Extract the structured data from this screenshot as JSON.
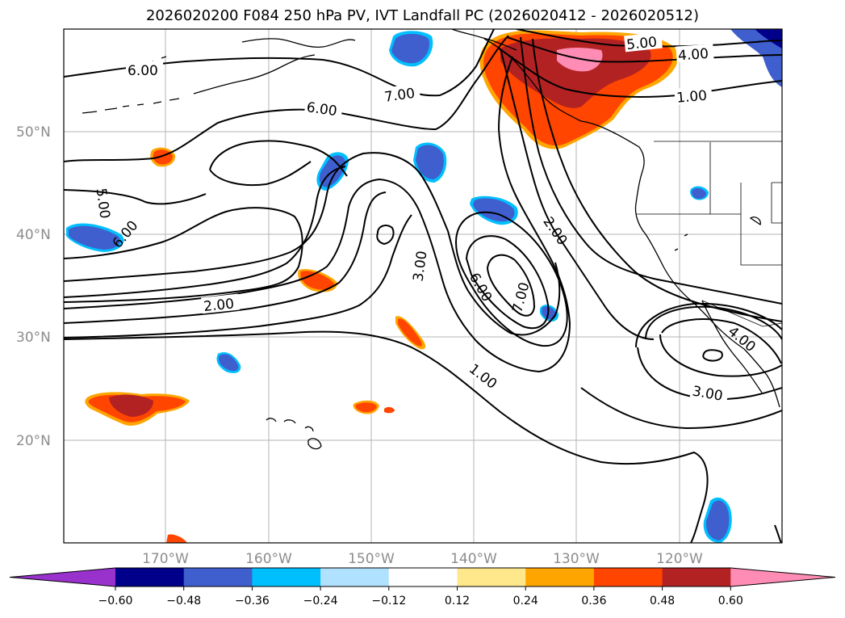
{
  "title": "2026020200 F084 250 hPa PV, IVT Landfall PC (2026020412 - 2026020512)",
  "lat_labels": [
    "50°N",
    "40°N",
    "30°N",
    "20°N"
  ],
  "lon_labels": [
    "170°W",
    "160°W",
    "150°W",
    "140°W",
    "130°W",
    "120°W"
  ],
  "contour_labels": [
    "6.00",
    "7.00",
    "6.00",
    "5.00",
    "4.00",
    "1.00",
    "5.00",
    "6.00",
    "2.00",
    "3.00",
    "6.00",
    "7.00",
    "2.00",
    "1.00",
    "4.00",
    "3.00"
  ],
  "colorbar": {
    "ticks": [
      "−0.60",
      "−0.48",
      "−0.36",
      "−0.24",
      "−0.12",
      "0.12",
      "0.24",
      "0.36",
      "0.48",
      "0.60"
    ],
    "colors": [
      "#9932cc",
      "#00008b",
      "#3e5fcd",
      "#00bfff",
      "#b0e2ff",
      "#ffffff",
      "#ffe88c",
      "#ffa500",
      "#ff4500",
      "#b22222",
      "#ff8cb4"
    ]
  }
}
